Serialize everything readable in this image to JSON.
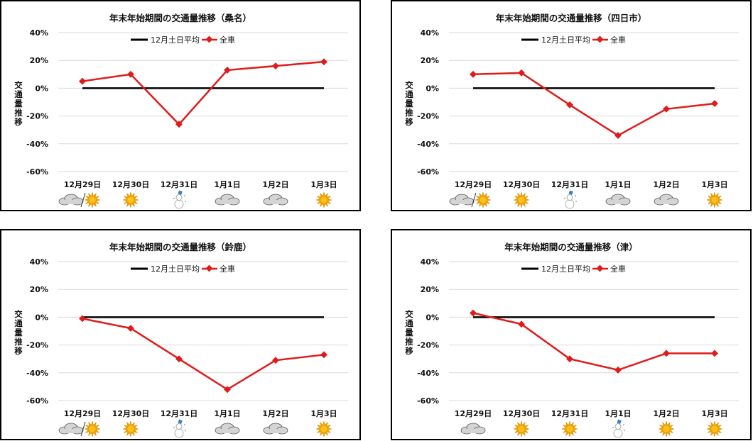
{
  "chart_data": [
    {
      "type": "line",
      "title": "年末年始期間の交通量推移（桑名）",
      "ylabel": "交通量推移",
      "xlabel": "",
      "categories": [
        "12月29日",
        "12月30日",
        "12月31日",
        "1月1日",
        "1月2日",
        "1月3日"
      ],
      "yticks": [
        "40%",
        "20%",
        "0%",
        "-20%",
        "-40%",
        "-60%"
      ],
      "ylim": [
        -60,
        40
      ],
      "grid": true,
      "legend_position": "top",
      "series": [
        {
          "name": "12月土日平均",
          "values": [
            0,
            0,
            0,
            0,
            0,
            0
          ],
          "color": "#000000"
        },
        {
          "name": "全車",
          "values": [
            5,
            10,
            -26,
            13,
            16,
            19
          ],
          "color": "#e01b1b"
        }
      ],
      "weather": [
        [
          "cloud",
          "sun"
        ],
        [
          "sun"
        ],
        [
          "snow"
        ],
        [
          "cloud"
        ],
        [
          "cloud"
        ],
        [
          "sun"
        ]
      ]
    },
    {
      "type": "line",
      "title": "年末年始期間の交通量推移（四日市）",
      "ylabel": "交通量推移",
      "xlabel": "",
      "categories": [
        "12月29日",
        "12月30日",
        "12月31日",
        "1月1日",
        "1月2日",
        "1月3日"
      ],
      "yticks": [
        "40%",
        "20%",
        "0%",
        "-20%",
        "-40%",
        "-60%"
      ],
      "ylim": [
        -60,
        40
      ],
      "grid": true,
      "legend_position": "top",
      "series": [
        {
          "name": "12月土日平均",
          "values": [
            0,
            0,
            0,
            0,
            0,
            0
          ],
          "color": "#000000"
        },
        {
          "name": "全車",
          "values": [
            10,
            11,
            -12,
            -34,
            -15,
            -11
          ],
          "color": "#e01b1b"
        }
      ],
      "weather": [
        [
          "cloud",
          "sun"
        ],
        [
          "sun"
        ],
        [
          "snow"
        ],
        [
          "cloud"
        ],
        [
          "cloud"
        ],
        [
          "sun"
        ]
      ]
    },
    {
      "type": "line",
      "title": "年末年始期間の交通量推移（鈴鹿）",
      "ylabel": "交通量推移",
      "xlabel": "",
      "categories": [
        "12月29日",
        "12月30日",
        "12月31日",
        "1月1日",
        "1月2日",
        "1月3日"
      ],
      "yticks": [
        "40%",
        "20%",
        "0%",
        "-20%",
        "-40%",
        "-60%"
      ],
      "ylim": [
        -60,
        40
      ],
      "grid": true,
      "legend_position": "top",
      "series": [
        {
          "name": "12月土日平均",
          "values": [
            0,
            0,
            0,
            0,
            0,
            0
          ],
          "color": "#000000"
        },
        {
          "name": "全車",
          "values": [
            -1,
            -8,
            -30,
            -52,
            -31,
            -27
          ],
          "color": "#e01b1b"
        }
      ],
      "weather": [
        [
          "cloud",
          "sun"
        ],
        [
          "sun"
        ],
        [
          "snow"
        ],
        [
          "cloud"
        ],
        [
          "cloud"
        ],
        [
          "sun"
        ]
      ]
    },
    {
      "type": "line",
      "title": "年末年始期間の交通量推移（津）",
      "ylabel": "交通量推移",
      "xlabel": "",
      "categories": [
        "12月29日",
        "12月30日",
        "12月31日",
        "1月1日",
        "1月2日",
        "1月3日"
      ],
      "yticks": [
        "40%",
        "20%",
        "0%",
        "-20%",
        "-40%",
        "-60%"
      ],
      "ylim": [
        -60,
        40
      ],
      "grid": true,
      "legend_position": "top",
      "series": [
        {
          "name": "12月土日平均",
          "values": [
            0,
            0,
            0,
            0,
            0,
            0
          ],
          "color": "#000000"
        },
        {
          "name": "全車",
          "values": [
            3,
            -5,
            -30,
            -38,
            -26,
            -26
          ],
          "color": "#e01b1b"
        }
      ],
      "weather": [
        [
          "cloud"
        ],
        [
          "sun"
        ],
        [
          "sun"
        ],
        [
          "snow"
        ],
        [
          "sun"
        ],
        [
          "sun"
        ]
      ]
    }
  ]
}
